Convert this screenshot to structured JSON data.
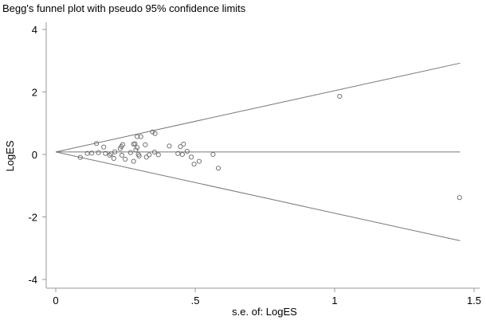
{
  "chart_data": {
    "type": "scatter",
    "title": "Begg's funnel plot with pseudo 95% confidence limits",
    "xlabel": "s.e. of: LogES",
    "ylabel": "LogES",
    "xlim": [
      0,
      1.5
    ],
    "ylim": [
      -4,
      4
    ],
    "x_ticks": [
      {
        "v": 0,
        "label": "0"
      },
      {
        "v": 0.5,
        "label": ".5"
      },
      {
        "v": 1,
        "label": "1"
      },
      {
        "v": 1.5,
        "label": "1.5"
      }
    ],
    "y_ticks": [
      {
        "v": 4,
        "label": "4"
      },
      {
        "v": 2,
        "label": "2"
      },
      {
        "v": 0,
        "label": "0"
      },
      {
        "v": -2,
        "label": "-2"
      },
      {
        "v": -4,
        "label": "-4"
      }
    ],
    "pooled_estimate": 0.08,
    "funnel_se_max": 1.45,
    "z": 1.96,
    "grid": false,
    "points": [
      [
        0.088,
        -0.094
      ],
      [
        0.113,
        0.033
      ],
      [
        0.129,
        0.043
      ],
      [
        0.146,
        0.35
      ],
      [
        0.153,
        0.059
      ],
      [
        0.172,
        0.237
      ],
      [
        0.178,
        0.033
      ],
      [
        0.193,
        -0.025
      ],
      [
        0.198,
        0.018
      ],
      [
        0.208,
        -0.127
      ],
      [
        0.212,
        0.084
      ],
      [
        0.231,
        0.186
      ],
      [
        0.235,
        0.255
      ],
      [
        0.24,
        0.313
      ],
      [
        0.237,
        -0.025
      ],
      [
        0.249,
        -0.153
      ],
      [
        0.268,
        0.059
      ],
      [
        0.279,
        0.33
      ],
      [
        0.284,
        0.34
      ],
      [
        0.287,
        0.145
      ],
      [
        0.292,
        0.22
      ],
      [
        0.279,
        -0.22
      ],
      [
        0.292,
        0.57
      ],
      [
        0.305,
        0.57
      ],
      [
        0.296,
        0.0
      ],
      [
        0.299,
        -0.05
      ],
      [
        0.321,
        0.31
      ],
      [
        0.325,
        -0.085
      ],
      [
        0.335,
        -0.01
      ],
      [
        0.347,
        0.72
      ],
      [
        0.356,
        0.67
      ],
      [
        0.354,
        0.076
      ],
      [
        0.368,
        -0.01
      ],
      [
        0.407,
        0.27
      ],
      [
        0.438,
        0.03
      ],
      [
        0.447,
        0.25
      ],
      [
        0.458,
        0.33
      ],
      [
        0.454,
        0.0
      ],
      [
        0.471,
        0.1
      ],
      [
        0.486,
        -0.085
      ],
      [
        0.496,
        -0.31
      ],
      [
        0.514,
        -0.22
      ],
      [
        0.564,
        0.0
      ],
      [
        0.583,
        -0.44
      ],
      [
        1.018,
        1.86
      ],
      [
        1.448,
        -1.38
      ]
    ]
  }
}
